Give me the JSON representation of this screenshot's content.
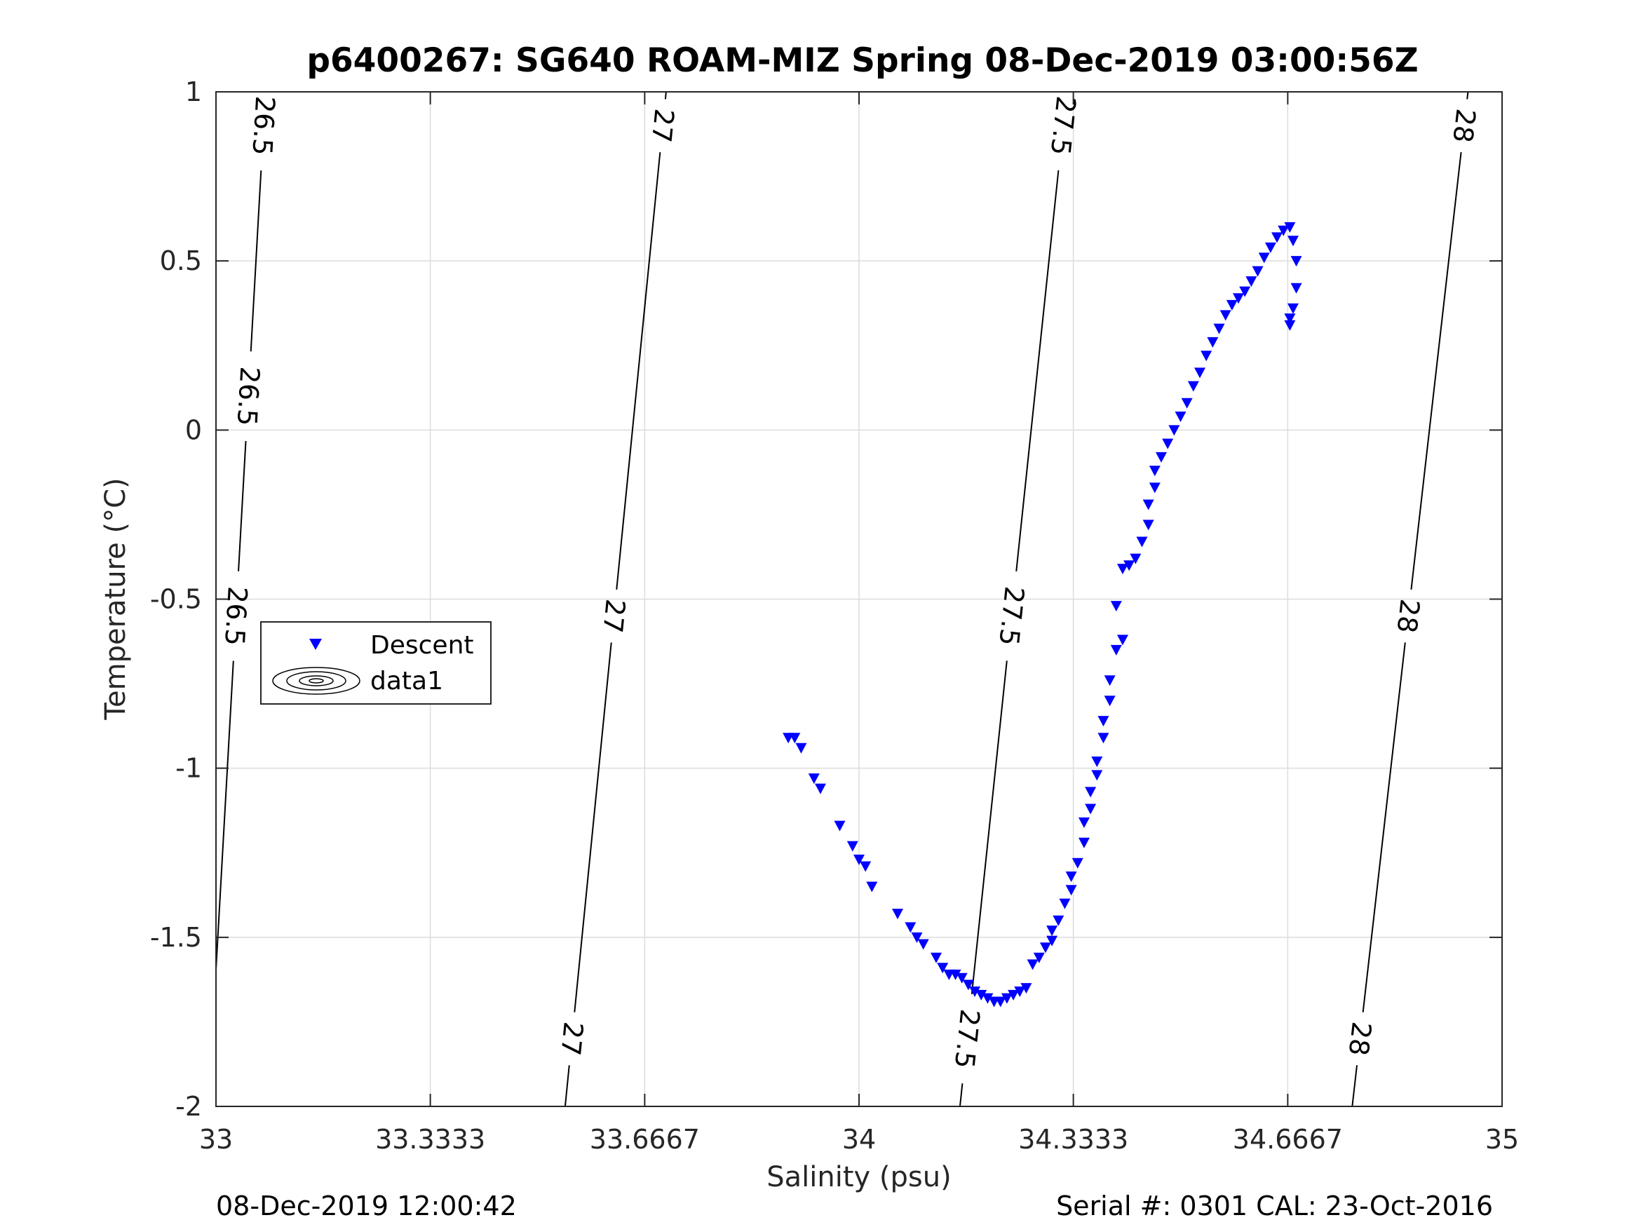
{
  "chart_data": {
    "type": "scatter",
    "title": "p6400267: SG640 ROAM-MIZ Spring 08-Dec-2019 03:00:56Z",
    "xlabel": "Salinity (psu)",
    "ylabel": "Temperature (°C)",
    "xlim": [
      33,
      35
    ],
    "ylim": [
      -2,
      1
    ],
    "xticks": [
      33,
      33.3333,
      33.6667,
      34,
      34.3333,
      34.6667,
      35
    ],
    "xtick_labels": [
      "33",
      "33.3333",
      "33.6667",
      "34",
      "34.3333",
      "34.6667",
      "35"
    ],
    "yticks": [
      -2,
      -1.5,
      -1,
      -0.5,
      0,
      0.5,
      1
    ],
    "ytick_labels": [
      "-2",
      "-1.5",
      "-1",
      "-0.5",
      "0",
      "0.5",
      "1"
    ],
    "grid": true,
    "legend_position": "center-left",
    "series": [
      {
        "name": "Descent",
        "marker": "triangle-down",
        "color": "#0000ff",
        "x": [
          33.89,
          33.9,
          33.91,
          33.93,
          33.94,
          33.97,
          33.99,
          34.0,
          34.01,
          34.02,
          34.06,
          34.08,
          34.09,
          34.1,
          34.12,
          34.13,
          34.14,
          34.15,
          34.16,
          34.17,
          34.18,
          34.19,
          34.2,
          34.21,
          34.22,
          34.23,
          34.24,
          34.25,
          34.26,
          34.27,
          34.28,
          34.29,
          34.3,
          34.3,
          34.31,
          34.32,
          34.33,
          34.33,
          34.34,
          34.35,
          34.35,
          34.36,
          34.36,
          34.37,
          34.37,
          34.38,
          34.38,
          34.39,
          34.39,
          34.4,
          34.4,
          34.41,
          34.41,
          34.42,
          34.43,
          34.44,
          34.45,
          34.45,
          34.46,
          34.46,
          34.47,
          34.48,
          34.49,
          34.5,
          34.51,
          34.52,
          34.53,
          34.54,
          34.55,
          34.56,
          34.57,
          34.58,
          34.59,
          34.6,
          34.61,
          34.62,
          34.63,
          34.64,
          34.65,
          34.66,
          34.67,
          34.675,
          34.68,
          34.68,
          34.675,
          34.67,
          34.67
        ],
        "y": [
          -0.91,
          -0.91,
          -0.94,
          -1.03,
          -1.06,
          -1.17,
          -1.23,
          -1.27,
          -1.29,
          -1.35,
          -1.43,
          -1.47,
          -1.5,
          -1.52,
          -1.56,
          -1.59,
          -1.61,
          -1.61,
          -1.62,
          -1.64,
          -1.66,
          -1.67,
          -1.68,
          -1.69,
          -1.69,
          -1.68,
          -1.67,
          -1.66,
          -1.65,
          -1.58,
          -1.56,
          -1.53,
          -1.51,
          -1.48,
          -1.45,
          -1.4,
          -1.36,
          -1.32,
          -1.28,
          -1.22,
          -1.16,
          -1.12,
          -1.07,
          -1.02,
          -0.98,
          -0.91,
          -0.86,
          -0.8,
          -0.74,
          -0.65,
          -0.52,
          -0.62,
          -0.41,
          -0.4,
          -0.38,
          -0.33,
          -0.28,
          -0.22,
          -0.17,
          -0.12,
          -0.08,
          -0.04,
          -0.0,
          0.04,
          0.08,
          0.13,
          0.17,
          0.22,
          0.26,
          0.3,
          0.34,
          0.37,
          0.39,
          0.41,
          0.44,
          0.47,
          0.51,
          0.54,
          0.57,
          0.59,
          0.6,
          0.56,
          0.5,
          0.42,
          0.36,
          0.33,
          0.31
        ]
      },
      {
        "name": "data1",
        "marker": "contour",
        "color": "#000000",
        "levels": [
          {
            "label": "26.5",
            "x_at_top": 33.077,
            "x_at_bottom": 32.988
          },
          {
            "label": "27",
            "x_at_top": 33.7,
            "x_at_bottom": 33.543
          },
          {
            "label": "27.5",
            "x_at_top": 34.323,
            "x_at_bottom": 34.157
          },
          {
            "label": "28",
            "x_at_top": 34.947,
            "x_at_bottom": 34.767
          }
        ]
      }
    ]
  },
  "footer": {
    "left": "08-Dec-2019 12:00:42",
    "right": "Serial #: 0301  CAL: 23-Oct-2016"
  }
}
